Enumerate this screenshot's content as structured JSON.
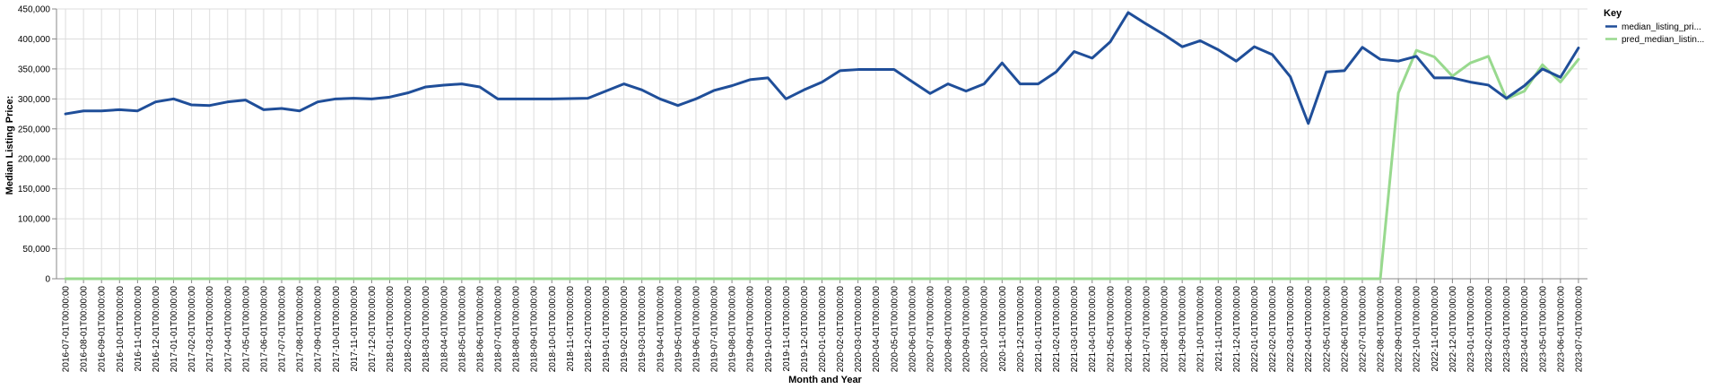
{
  "chart_data": {
    "type": "line",
    "title": "",
    "xlabel": "Month and Year",
    "ylabel": "Median Listing Price:",
    "ylim": [
      0,
      450000
    ],
    "y_ticks": [
      "0",
      "50,000",
      "100,000",
      "150,000",
      "200,000",
      "250,000",
      "300,000",
      "350,000",
      "400,000",
      "450,000"
    ],
    "grid": true,
    "legend": {
      "title": "Key",
      "position": "right"
    },
    "categories": [
      "2016-07-01T00:00:00",
      "2016-08-01T00:00:00",
      "2016-09-01T00:00:00",
      "2016-10-01T00:00:00",
      "2016-11-01T00:00:00",
      "2016-12-01T00:00:00",
      "2017-01-01T00:00:00",
      "2017-02-01T00:00:00",
      "2017-03-01T00:00:00",
      "2017-04-01T00:00:00",
      "2017-05-01T00:00:00",
      "2017-06-01T00:00:00",
      "2017-07-01T00:00:00",
      "2017-08-01T00:00:00",
      "2017-09-01T00:00:00",
      "2017-10-01T00:00:00",
      "2017-11-01T00:00:00",
      "2017-12-01T00:00:00",
      "2018-01-01T00:00:00",
      "2018-02-01T00:00:00",
      "2018-03-01T00:00:00",
      "2018-04-01T00:00:00",
      "2018-05-01T00:00:00",
      "2018-06-01T00:00:00",
      "2018-07-01T00:00:00",
      "2018-08-01T00:00:00",
      "2018-09-01T00:00:00",
      "2018-10-01T00:00:00",
      "2018-11-01T00:00:00",
      "2018-12-01T00:00:00",
      "2019-01-01T00:00:00",
      "2019-02-01T00:00:00",
      "2019-03-01T00:00:00",
      "2019-04-01T00:00:00",
      "2019-05-01T00:00:00",
      "2019-06-01T00:00:00",
      "2019-07-01T00:00:00",
      "2019-08-01T00:00:00",
      "2019-09-01T00:00:00",
      "2019-10-01T00:00:00",
      "2019-11-01T00:00:00",
      "2019-12-01T00:00:00",
      "2020-01-01T00:00:00",
      "2020-02-01T00:00:00",
      "2020-03-01T00:00:00",
      "2020-04-01T00:00:00",
      "2020-05-01T00:00:00",
      "2020-06-01T00:00:00",
      "2020-07-01T00:00:00",
      "2020-08-01T00:00:00",
      "2020-09-01T00:00:00",
      "2020-10-01T00:00:00",
      "2020-11-01T00:00:00",
      "2020-12-01T00:00:00",
      "2021-01-01T00:00:00",
      "2021-02-01T00:00:00",
      "2021-03-01T00:00:00",
      "2021-04-01T00:00:00",
      "2021-05-01T00:00:00",
      "2021-06-01T00:00:00",
      "2021-07-01T00:00:00",
      "2021-08-01T00:00:00",
      "2021-09-01T00:00:00",
      "2021-10-01T00:00:00",
      "2021-11-01T00:00:00",
      "2021-12-01T00:00:00",
      "2022-01-01T00:00:00",
      "2022-02-01T00:00:00",
      "2022-03-01T00:00:00",
      "2022-04-01T00:00:00",
      "2022-05-01T00:00:00",
      "2022-06-01T00:00:00",
      "2022-07-01T00:00:00",
      "2022-08-01T00:00:00",
      "2022-09-01T00:00:00",
      "2022-10-01T00:00:00",
      "2022-11-01T00:00:00",
      "2022-12-01T00:00:00",
      "2023-01-01T00:00:00",
      "2023-02-01T00:00:00",
      "2023-03-01T00:00:00",
      "2023-04-01T00:00:00",
      "2023-05-01T00:00:00",
      "2023-06-01T00:00:00",
      "2023-07-01T00:00:00"
    ],
    "series": [
      {
        "name": "median_listing_pri...",
        "color": "#1f4e99",
        "values": [
          275000,
          280000,
          280000,
          282000,
          280000,
          295000,
          300000,
          290000,
          289000,
          295000,
          298000,
          282000,
          284000,
          280000,
          295000,
          300000,
          301000,
          300000,
          303000,
          310000,
          320000,
          323000,
          325000,
          320000,
          300000,
          300000,
          300000,
          300000,
          300500,
          301000,
          313000,
          325000,
          315000,
          300000,
          289000,
          300000,
          314000,
          322000,
          332000,
          335000,
          300000,
          315000,
          328000,
          347000,
          349000,
          349000,
          349000,
          329000,
          309000,
          325000,
          313000,
          325000,
          360000,
          325000,
          325000,
          345000,
          379000,
          368000,
          395000,
          444000,
          425000,
          407000,
          387000,
          397000,
          382000,
          363000,
          387000,
          374000,
          337000,
          259000,
          345000,
          347000,
          386000,
          366000,
          363000,
          371000,
          335000,
          335000,
          328000,
          323000,
          301000,
          322000,
          350000,
          336000,
          385000
        ]
      },
      {
        "name": "pred_median_listin...",
        "color": "#98d98e",
        "values": [
          0,
          0,
          0,
          0,
          0,
          0,
          0,
          0,
          0,
          0,
          0,
          0,
          0,
          0,
          0,
          0,
          0,
          0,
          0,
          0,
          0,
          0,
          0,
          0,
          0,
          0,
          0,
          0,
          0,
          0,
          0,
          0,
          0,
          0,
          0,
          0,
          0,
          0,
          0,
          0,
          0,
          0,
          0,
          0,
          0,
          0,
          0,
          0,
          0,
          0,
          0,
          0,
          0,
          0,
          0,
          0,
          0,
          0,
          0,
          0,
          0,
          0,
          0,
          0,
          0,
          0,
          0,
          0,
          0,
          0,
          0,
          0,
          0,
          0,
          310000,
          381000,
          370000,
          338000,
          360000,
          371000,
          300000,
          313000,
          357000,
          328000,
          366000
        ]
      }
    ]
  }
}
